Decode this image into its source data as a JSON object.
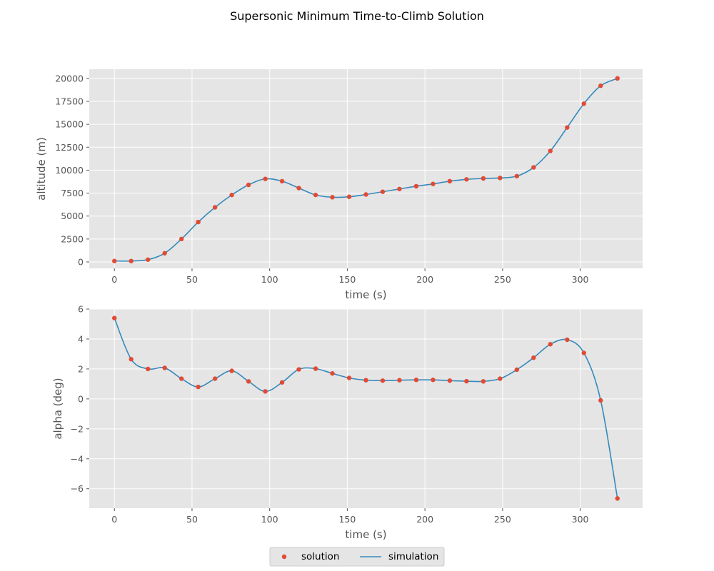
{
  "figure": {
    "title": "Supersonic Minimum Time-to-Climb Solution"
  },
  "legend": {
    "placement": "bottom-center",
    "items": [
      {
        "label": "solution",
        "marker": "dot"
      },
      {
        "label": "simulation",
        "marker": "line"
      }
    ]
  },
  "colors": {
    "solution": "#E24A33",
    "simulation": "#348ABD",
    "axes_background": "#E5E5E5",
    "grid": "#FFFFFF",
    "tick_text": "#555555"
  },
  "chart_data": [
    {
      "type": "line",
      "title": "",
      "xlabel": "time (s)",
      "ylabel": "altitude (m)",
      "xlim": [
        -16.2,
        340.2
      ],
      "ylim": [
        -700,
        21000
      ],
      "xticks": [
        0,
        50,
        100,
        150,
        200,
        250,
        300
      ],
      "yticks": [
        0,
        2500,
        5000,
        7500,
        10000,
        12500,
        15000,
        17500,
        20000
      ],
      "grid": true,
      "series": [
        {
          "name": "solution",
          "type": "scatter",
          "x": [
            0,
            10.8,
            21.6,
            32.4,
            43.2,
            54,
            64.8,
            75.6,
            86.4,
            97.2,
            108,
            118.8,
            129.6,
            140.4,
            151.2,
            162,
            172.8,
            183.6,
            194.4,
            205.2,
            216,
            226.8,
            237.6,
            248.4,
            259.2,
            270,
            280.8,
            291.6,
            302.4,
            313.2,
            324
          ],
          "y": [
            100,
            100,
            250,
            950,
            2500,
            4350,
            5950,
            7300,
            8400,
            9050,
            8800,
            8050,
            7300,
            7050,
            7100,
            7350,
            7650,
            7950,
            8250,
            8500,
            8800,
            9000,
            9100,
            9150,
            9350,
            10300,
            12100,
            14650,
            17250,
            19200,
            20000
          ]
        },
        {
          "name": "simulation",
          "type": "line",
          "x": [
            0,
            10.8,
            21.6,
            32.4,
            43.2,
            54,
            64.8,
            75.6,
            86.4,
            97.2,
            108,
            118.8,
            129.6,
            140.4,
            151.2,
            162,
            172.8,
            183.6,
            194.4,
            205.2,
            216,
            226.8,
            237.6,
            248.4,
            259.2,
            270,
            280.8,
            291.6,
            302.4,
            313.2,
            324
          ],
          "y": [
            100,
            100,
            250,
            950,
            2500,
            4350,
            5950,
            7300,
            8400,
            9050,
            8800,
            8050,
            7300,
            7050,
            7100,
            7350,
            7650,
            7950,
            8250,
            8500,
            8800,
            9000,
            9100,
            9150,
            9350,
            10300,
            12100,
            14650,
            17250,
            19200,
            20000
          ]
        }
      ]
    },
    {
      "type": "line",
      "title": "",
      "xlabel": "time (s)",
      "ylabel": "alpha (deg)",
      "xlim": [
        -16.2,
        340.2
      ],
      "ylim": [
        -7.3,
        6.0
      ],
      "xticks": [
        0,
        50,
        100,
        150,
        200,
        250,
        300
      ],
      "yticks": [
        -6,
        -4,
        -2,
        0,
        2,
        4,
        6
      ],
      "ytick_labels": [
        "−6",
        "−4",
        "−2",
        "0",
        "2",
        "4",
        "6"
      ],
      "grid": true,
      "series": [
        {
          "name": "solution",
          "type": "scatter",
          "x": [
            0,
            10.8,
            21.6,
            32.4,
            43.2,
            54,
            64.8,
            75.6,
            86.4,
            97.2,
            108,
            118.8,
            129.6,
            140.4,
            151.2,
            162,
            172.8,
            183.6,
            194.4,
            205.2,
            216,
            226.8,
            237.6,
            248.4,
            259.2,
            270,
            280.8,
            291.6,
            302.4,
            313.2,
            324
          ],
          "y": [
            5.4,
            2.65,
            2.0,
            2.07,
            1.35,
            0.8,
            1.35,
            1.87,
            1.17,
            0.5,
            1.1,
            1.97,
            2.02,
            1.7,
            1.4,
            1.25,
            1.22,
            1.25,
            1.27,
            1.27,
            1.22,
            1.18,
            1.17,
            1.35,
            1.95,
            2.75,
            3.65,
            3.95,
            3.07,
            -0.1,
            -6.65
          ]
        },
        {
          "name": "simulation",
          "type": "line",
          "x": [
            0,
            10.8,
            21.6,
            32.4,
            43.2,
            54,
            64.8,
            75.6,
            86.4,
            97.2,
            108,
            118.8,
            129.6,
            140.4,
            151.2,
            162,
            172.8,
            183.6,
            194.4,
            205.2,
            216,
            226.8,
            237.6,
            248.4,
            259.2,
            270,
            280.8,
            291.6,
            302.4,
            313.2,
            324
          ],
          "y": [
            5.4,
            2.65,
            2.0,
            2.07,
            1.35,
            0.8,
            1.35,
            1.87,
            1.17,
            0.5,
            1.1,
            1.97,
            2.02,
            1.7,
            1.4,
            1.25,
            1.22,
            1.25,
            1.27,
            1.27,
            1.22,
            1.18,
            1.17,
            1.35,
            1.95,
            2.75,
            3.65,
            3.95,
            3.07,
            -0.1,
            -6.65
          ]
        }
      ]
    }
  ]
}
